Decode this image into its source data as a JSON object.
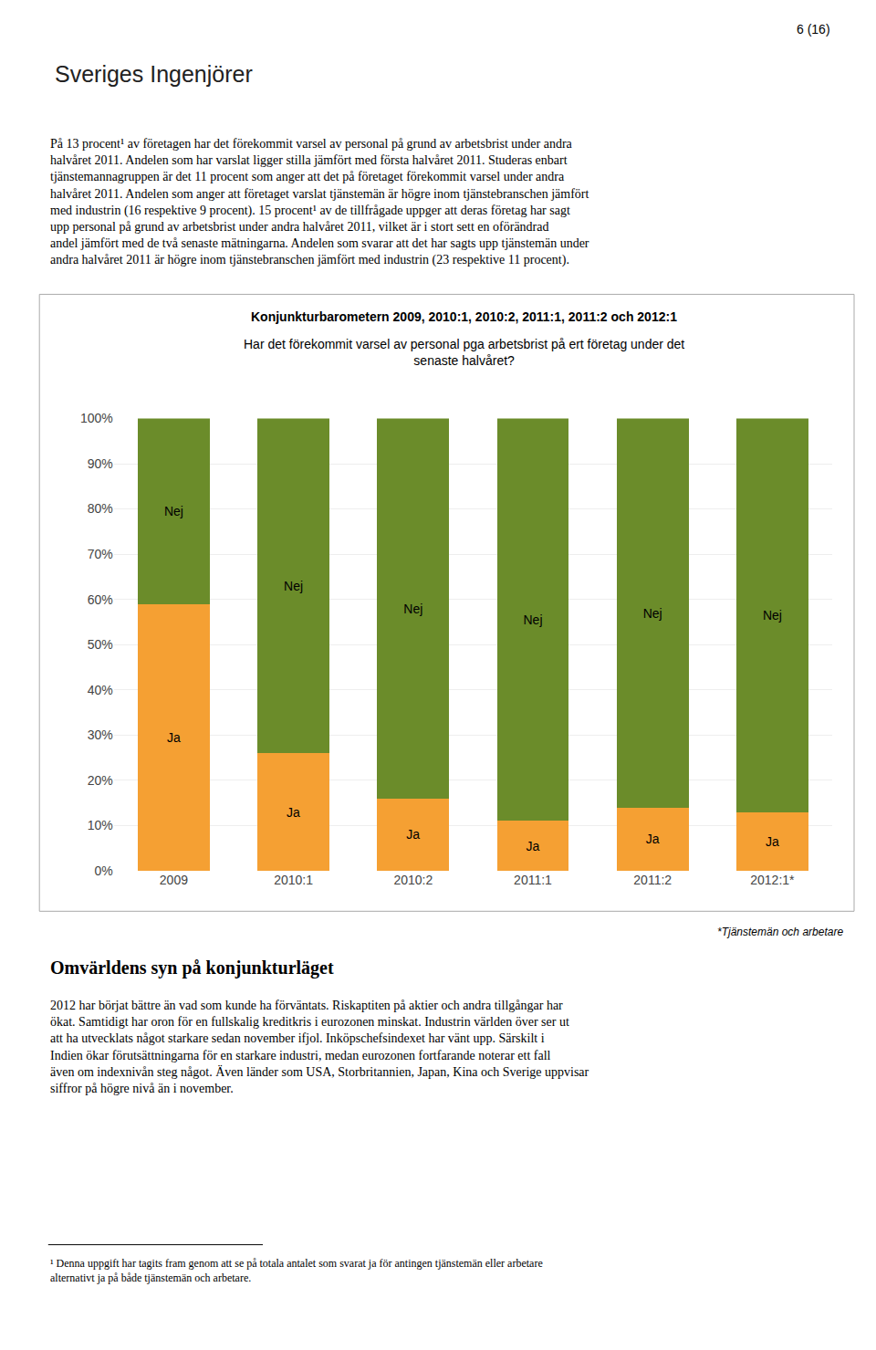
{
  "chart_data": {
    "type": "bar",
    "title": "Konjunkturbarometern 2009, 2010:1, 2010:2, 2011:1, 2011:2 och 2012:1",
    "subtitle": "Har det förekommit varsel av personal pga arbetsbrist på ert företag under det\nsenaste halvåret?",
    "categories": [
      "2009",
      "2010:1",
      "2010:2",
      "2011:1",
      "2011:2",
      "2012:1*"
    ],
    "series": [
      {
        "name": "Ja",
        "color": "#F5A033",
        "values": [
          59,
          26,
          16,
          11,
          14,
          13
        ]
      },
      {
        "name": "Nej",
        "color": "#6B8C2A",
        "values": [
          41,
          74,
          84,
          89,
          86,
          87
        ]
      }
    ],
    "stacked": true,
    "ylim": [
      0,
      100
    ],
    "yticks": [
      {
        "value": 0,
        "label": "0%"
      },
      {
        "value": 10,
        "label": "10%"
      },
      {
        "value": 20,
        "label": "20%"
      },
      {
        "value": 30,
        "label": "30%"
      },
      {
        "value": 40,
        "label": "40%"
      },
      {
        "value": 50,
        "label": "50%"
      },
      {
        "value": 60,
        "label": "60%"
      },
      {
        "value": 70,
        "label": "70%"
      },
      {
        "value": 80,
        "label": "80%"
      },
      {
        "value": 90,
        "label": "90%"
      },
      {
        "value": 100,
        "label": "100%"
      }
    ],
    "grid": true,
    "annotations": [
      "6 (16)",
      "Sveriges Ingenjörer",
      "På 13 procent¹ av företagen har det förekommit varsel av personal på grund av arbetsbrist under andra halvåret 2011. Andelen som har varslat ligger stilla jämfört med första halvåret 2011. Studeras enbart tjänstemannagruppen är det 11 procent som anger att det på företaget förekommit varsel under andra halvåret 2011. Andelen som anger att företaget varslat tjänstemän är högre inom tjänstebranschen jämfört med industrin (16 respektive 9 procent). 15 procent¹ av de tillfrågade uppger att deras företag har sagt upp personal på grund av arbetsbrist under andra halvåret 2011, vilket är i stort sett en oförändrad andel jämfört med de två senaste mätningarna. Andelen som svarar att det har sagts upp tjänstemän under andra halvåret 2011 är högre inom tjänstebranschen jämfört med industrin (23 respektive 11 procent).",
      "*Tjänstemän och arbetare",
      "Omvärldens syn på konjunkturläget",
      "2012 har börjat bättre än vad som kunde ha förväntats. Riskaptiten på aktier och andra tillgångar har ökat. Samtidigt har oron för en fullskalig kreditkris i eurozonen minskat. Industrin världen över ser ut att ha utvecklats något starkare sedan november ifjol. Inköpschefsindexet har vänt upp. Särskilt i Indien ökar förutsättningarna för en starkare industri, medan eurozonen fortfarande noterar ett fall även om indexnivån steg något. Även länder som USA, Storbritannien, Japan, Kina och Sverige uppvisar siffror på högre nivå än i november.",
      "¹ Denna uppgift har tagits fram genom att se på totala antalet som svarat ja för antingen tjänstemän eller arbetare alternativt ja på både tjänstemän och arbetare."
    ]
  }
}
